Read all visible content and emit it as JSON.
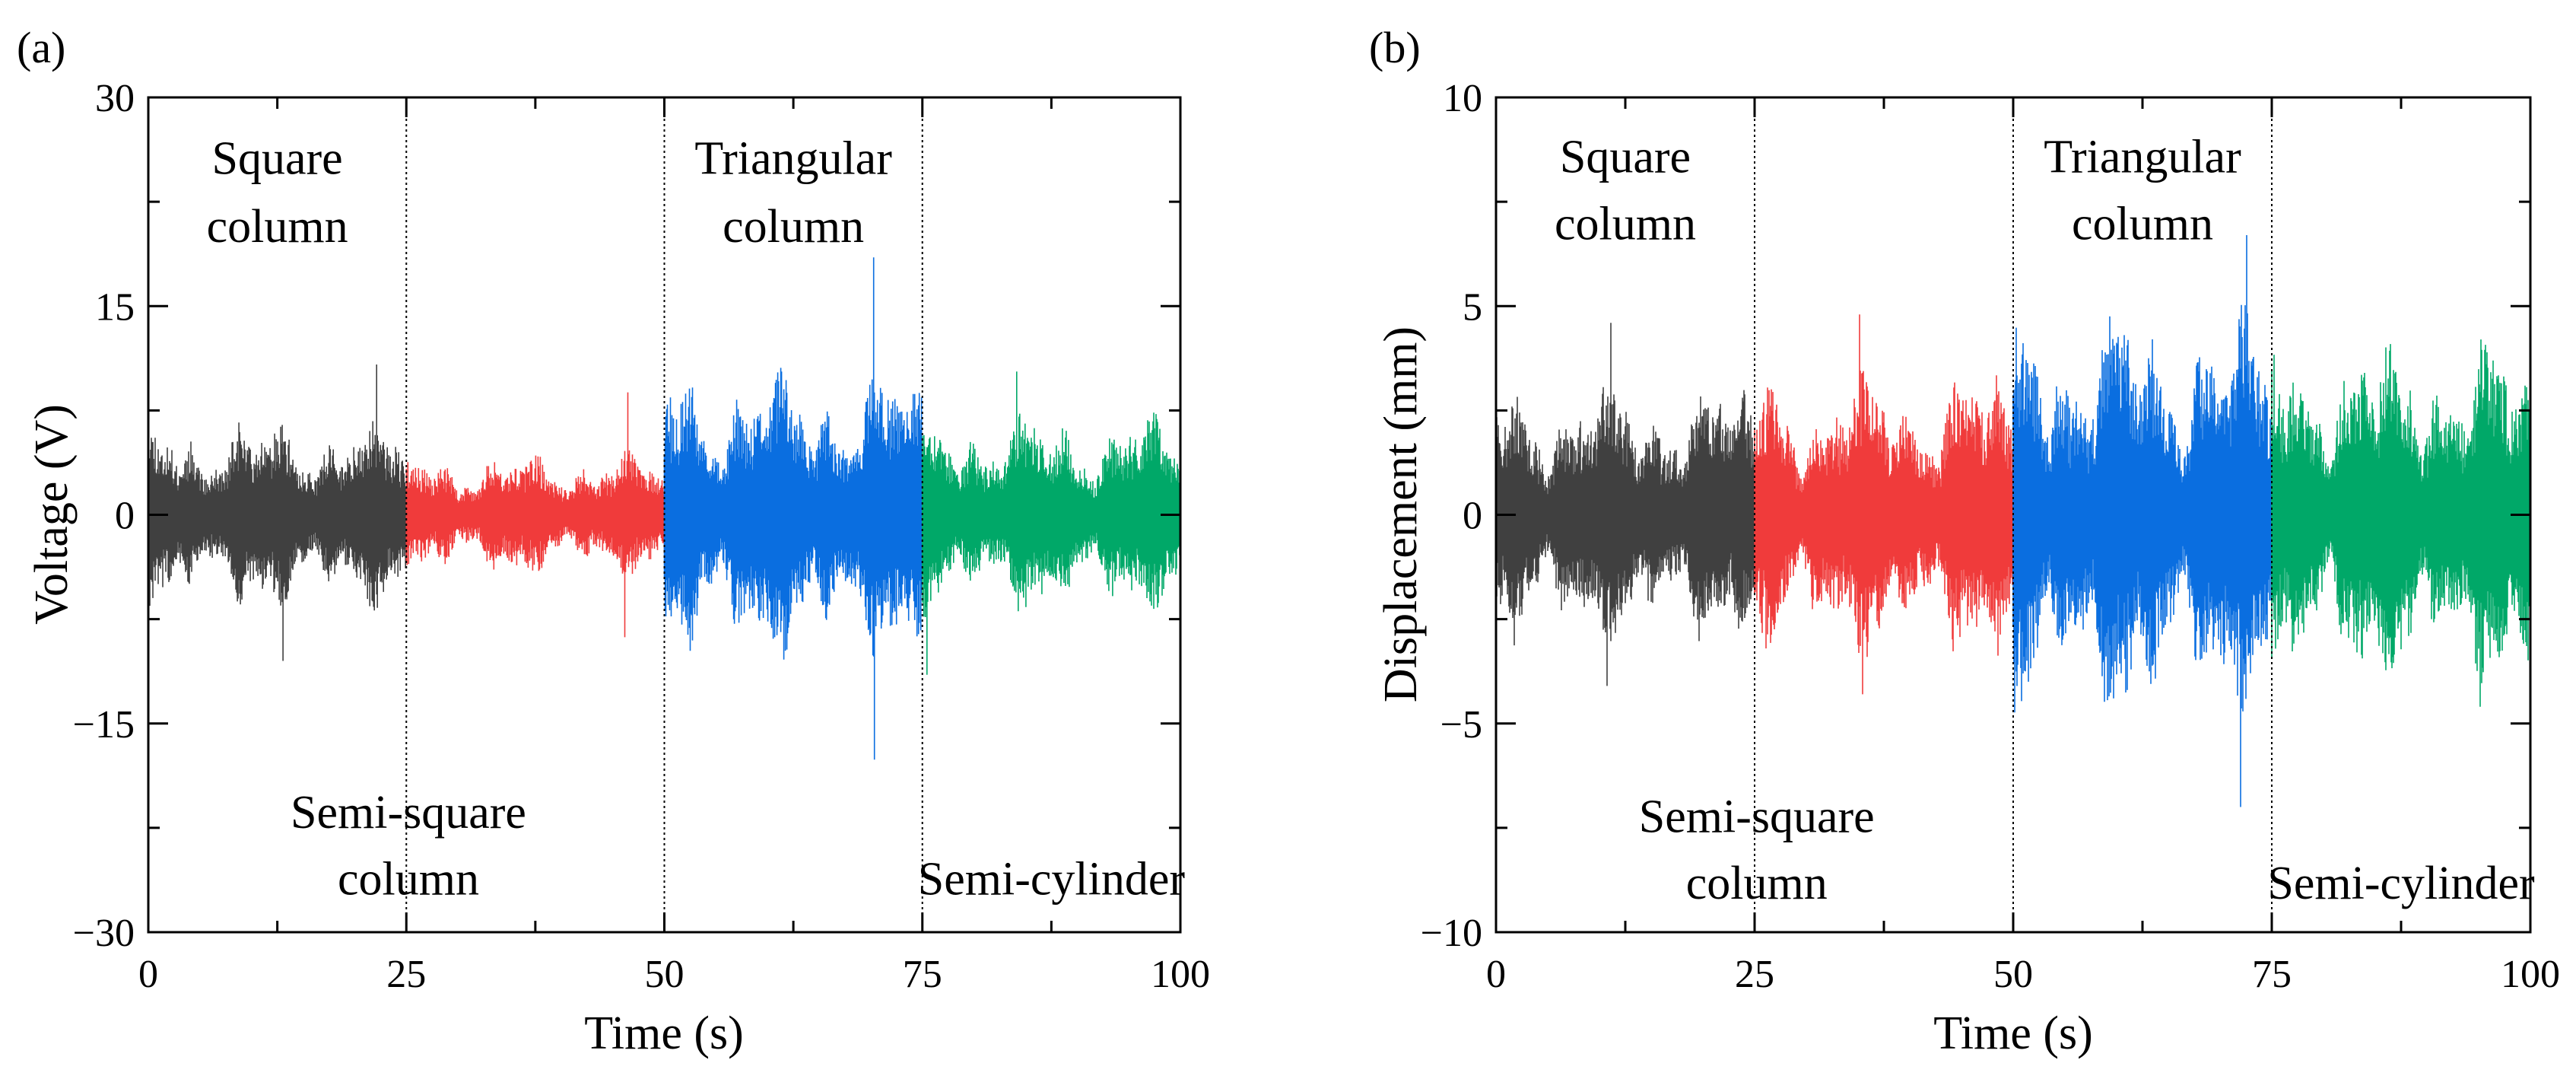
{
  "chart_data": [
    {
      "panel": "(a)",
      "type": "line",
      "title": "",
      "xlabel": "Time (s)",
      "ylabel": "Voltage (V)",
      "xlim": [
        0,
        100
      ],
      "ylim": [
        -30,
        30
      ],
      "xticks": [
        0,
        25,
        50,
        75,
        100
      ],
      "yticks": [
        -30,
        -15,
        0,
        15,
        30
      ],
      "ytick_labels": [
        "−30",
        "−15",
        "0",
        "15",
        "30"
      ],
      "dividers": [
        25,
        50,
        75
      ],
      "annotations": [
        {
          "lines": [
            "Square",
            "column"
          ],
          "x": 12.5,
          "y": [
            24.5,
            19.6
          ]
        },
        {
          "lines": [
            "Triangular",
            "column"
          ],
          "x": 62.5,
          "y": [
            24.5,
            19.6
          ]
        },
        {
          "lines": [
            "Semi-square",
            "column"
          ],
          "x": 25.2,
          "y": [
            -22.5,
            -27.3
          ]
        },
        {
          "lines": [
            "Semi-cylinder"
          ],
          "x": 87.5,
          "y": [
            -27.3
          ]
        }
      ],
      "series": [
        {
          "name": "Square column",
          "color": "#404040",
          "t_range": [
            0,
            25
          ],
          "typical_amplitude": 5.2,
          "peak_max": 10.8,
          "peak_min": -10.5,
          "seed": 11
        },
        {
          "name": "Semi-square column",
          "color": "#f03b3b",
          "t_range": [
            25,
            50
          ],
          "typical_amplitude": 3.4,
          "peak_max": 8.8,
          "peak_min": -8.8,
          "seed": 23
        },
        {
          "name": "Triangular column",
          "color": "#0a6ee0",
          "t_range": [
            50,
            75
          ],
          "typical_amplitude": 8.0,
          "peak_max": 18.5,
          "peak_min": -17.6,
          "seed": 37
        },
        {
          "name": "Semi-cylinder",
          "color": "#00a868",
          "t_range": [
            75,
            100
          ],
          "typical_amplitude": 5.5,
          "peak_max": 10.3,
          "peak_min": -11.5,
          "seed": 53
        }
      ]
    },
    {
      "panel": "(b)",
      "type": "line",
      "title": "",
      "xlabel": "Time (s)",
      "ylabel": "Displacement (mm)",
      "xlim": [
        0,
        100
      ],
      "ylim": [
        -10,
        10
      ],
      "xticks": [
        0,
        25,
        50,
        75,
        100
      ],
      "yticks": [
        -10,
        -5,
        0,
        5,
        10
      ],
      "ytick_labels": [
        "−10",
        "−5",
        "0",
        "5",
        "10"
      ],
      "dividers": [
        25,
        50,
        75
      ],
      "annotations": [
        {
          "lines": [
            "Square",
            "column"
          ],
          "x": 12.5,
          "y": [
            8.2,
            6.6
          ]
        },
        {
          "lines": [
            "Triangular",
            "column"
          ],
          "x": 62.5,
          "y": [
            8.2,
            6.6
          ]
        },
        {
          "lines": [
            "Semi-square",
            "column"
          ],
          "x": 25.2,
          "y": [
            -7.6,
            -9.2
          ]
        },
        {
          "lines": [
            "Semi-cylinder"
          ],
          "x": 87.5,
          "y": [
            -9.2
          ]
        }
      ],
      "series": [
        {
          "name": "Square column",
          "color": "#404040",
          "t_range": [
            0,
            25
          ],
          "typical_amplitude": 2.4,
          "peak_max": 4.6,
          "peak_min": -4.1,
          "seed": 71
        },
        {
          "name": "Semi-square column",
          "color": "#f03b3b",
          "t_range": [
            25,
            50
          ],
          "typical_amplitude": 2.6,
          "peak_max": 4.8,
          "peak_min": -4.3,
          "seed": 83
        },
        {
          "name": "Triangular column",
          "color": "#0a6ee0",
          "t_range": [
            50,
            75
          ],
          "typical_amplitude": 3.7,
          "peak_max": 6.7,
          "peak_min": -7.0,
          "seed": 97
        },
        {
          "name": "Semi-cylinder",
          "color": "#00a868",
          "t_range": [
            75,
            100
          ],
          "typical_amplitude": 3.2,
          "peak_max": 4.2,
          "peak_min": -4.6,
          "seed": 113
        }
      ]
    }
  ]
}
